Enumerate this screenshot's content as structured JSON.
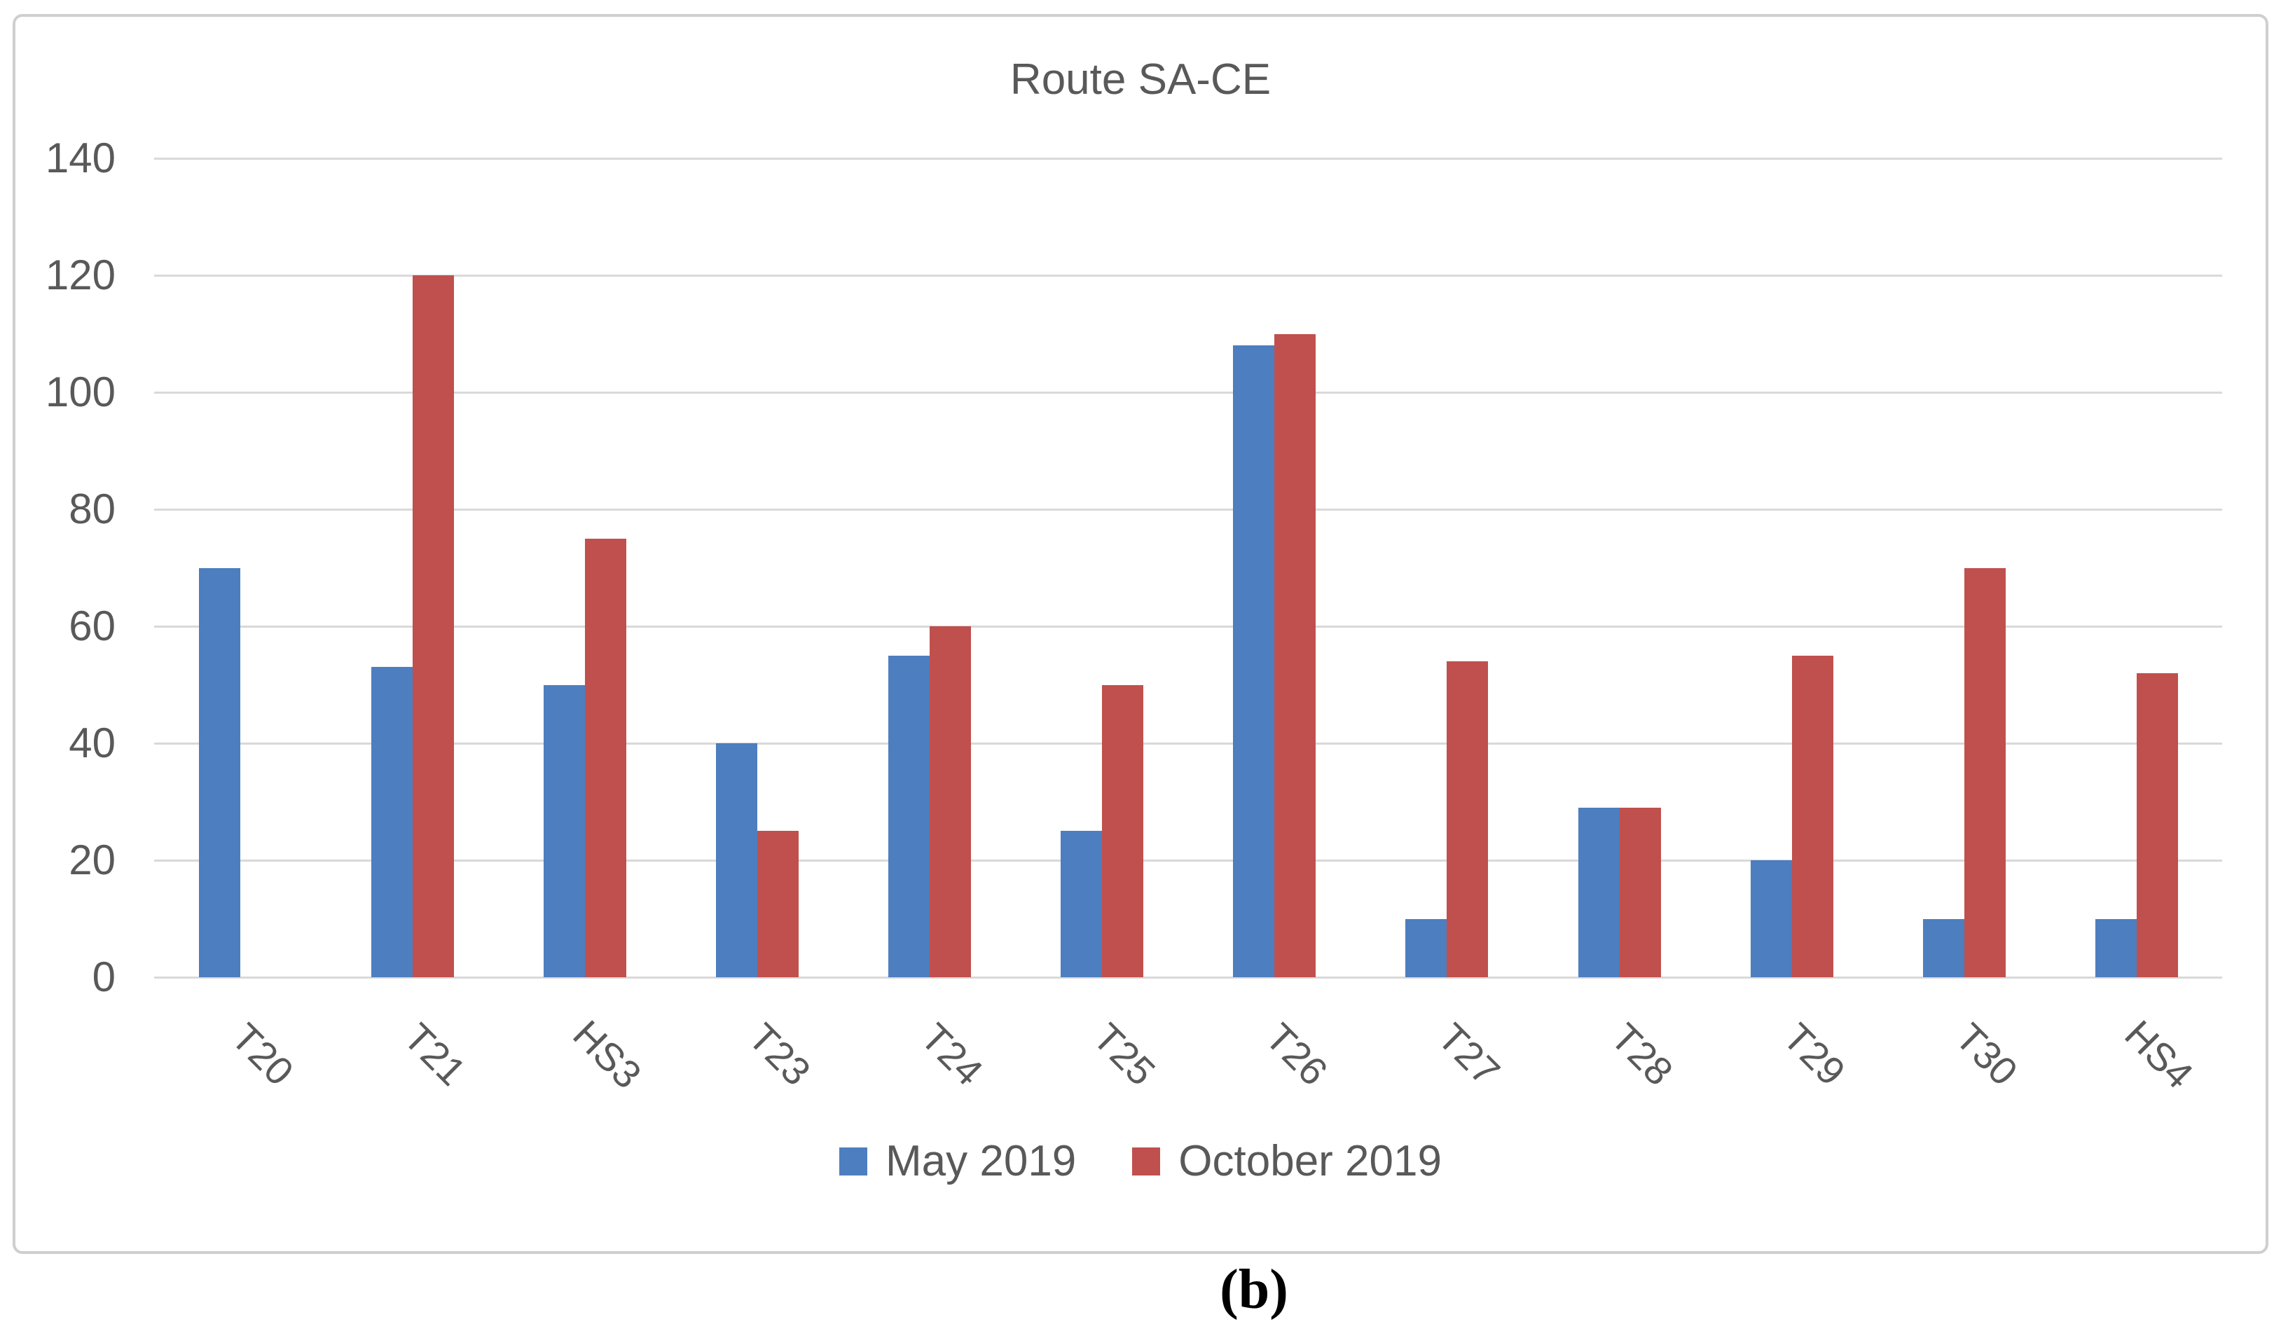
{
  "figure": {
    "caption": "(b)"
  },
  "colors": {
    "may_blue": "#4d7ebf",
    "october_red": "#c0504d",
    "gridline": "#d9d9d9",
    "chart_text": "#595959",
    "frame_border": "#d0cece"
  },
  "chart_data": {
    "type": "bar",
    "title": "Route SA-CE",
    "categories": [
      "T20",
      "T21",
      "HS3",
      "T23",
      "T24",
      "T25",
      "T26",
      "T27",
      "T28",
      "T29",
      "T30",
      "HS4"
    ],
    "series": [
      {
        "name": "May 2019",
        "color": "#4d7ebf",
        "values": [
          70,
          53,
          50,
          40,
          55,
          25,
          108,
          10,
          29,
          20,
          10,
          10
        ]
      },
      {
        "name": "October 2019",
        "color": "#c0504d",
        "values": [
          0,
          120,
          75,
          25,
          60,
          50,
          110,
          54,
          29,
          55,
          70,
          52
        ]
      }
    ],
    "xlabel": "",
    "ylabel": "",
    "ylim": [
      0,
      140
    ],
    "yticks": [
      0,
      20,
      40,
      60,
      80,
      100,
      120,
      140
    ],
    "grid": true,
    "legend_position": "bottom",
    "x_tick_rotation_deg": 45
  }
}
